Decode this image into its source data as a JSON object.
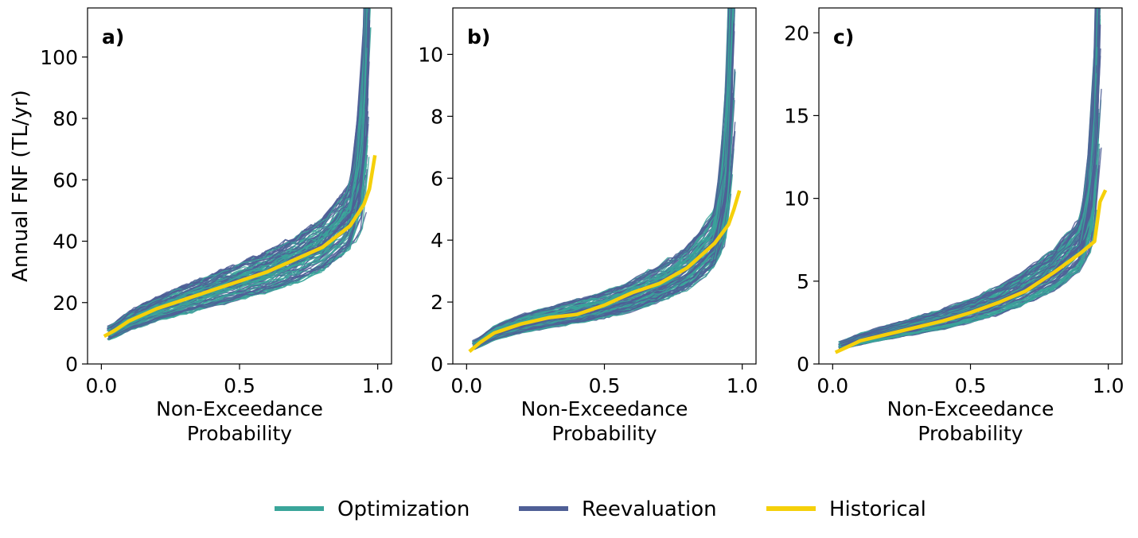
{
  "figure": {
    "ylabel": "Annual FNF (TL/yr)",
    "xlabel_line1": "Non-Exceedance",
    "xlabel_line2": "Probability",
    "legend": [
      {
        "label": "Optimization",
        "color": "#3aa59a"
      },
      {
        "label": "Reevaluation",
        "color": "#4f5f96"
      },
      {
        "label": "Historical",
        "color": "#f5d00a"
      }
    ]
  },
  "chart_data": [
    {
      "type": "line",
      "panel_label": "a)",
      "xlabel": "Non-Exceedance Probability",
      "ylabel": "Annual FNF (TL/yr)",
      "xlim": [
        -0.05,
        1.05
      ],
      "ylim": [
        0,
        116
      ],
      "xticks": [
        0.0,
        0.5,
        1.0
      ],
      "xtick_labels": [
        "0.0",
        "0.5",
        "1.0"
      ],
      "yticks": [
        0,
        20,
        40,
        60,
        80,
        100
      ],
      "ytick_labels": [
        "0",
        "20",
        "40",
        "60",
        "80",
        "100"
      ],
      "grid": false,
      "series": [
        {
          "name": "Historical",
          "x": [
            0.01,
            0.05,
            0.1,
            0.2,
            0.3,
            0.4,
            0.5,
            0.6,
            0.7,
            0.8,
            0.9,
            0.95,
            0.97,
            0.99
          ],
          "y": [
            9,
            11,
            14,
            18,
            21,
            24,
            27,
            30,
            34,
            38,
            45,
            52,
            57,
            68
          ]
        },
        {
          "name": "Reevaluation",
          "x": [
            0.03,
            0.1,
            0.2,
            0.3,
            0.4,
            0.5,
            0.6,
            0.7,
            0.8,
            0.9,
            0.94,
            0.96,
            0.97
          ],
          "y": [
            10,
            14,
            18,
            21,
            24,
            27,
            30,
            34,
            39,
            48,
            58,
            75,
            112
          ]
        }
      ]
    },
    {
      "type": "line",
      "panel_label": "b)",
      "xlabel": "Non-Exceedance Probability",
      "xlim": [
        -0.05,
        1.05
      ],
      "ylim": [
        0,
        11.5
      ],
      "xticks": [
        0.0,
        0.5,
        1.0
      ],
      "xtick_labels": [
        "0.0",
        "0.5",
        "1.0"
      ],
      "yticks": [
        0,
        2,
        4,
        6,
        8,
        10
      ],
      "ytick_labels": [
        "0",
        "2",
        "4",
        "6",
        "8",
        "10"
      ],
      "grid": false,
      "series": [
        {
          "name": "Historical",
          "x": [
            0.01,
            0.05,
            0.1,
            0.2,
            0.3,
            0.4,
            0.5,
            0.6,
            0.7,
            0.8,
            0.9,
            0.95,
            0.97,
            0.99
          ],
          "y": [
            0.4,
            0.7,
            1.0,
            1.3,
            1.5,
            1.6,
            1.9,
            2.3,
            2.6,
            3.1,
            3.9,
            4.5,
            5.0,
            5.6
          ]
        },
        {
          "name": "Reevaluation",
          "x": [
            0.03,
            0.1,
            0.2,
            0.3,
            0.4,
            0.5,
            0.6,
            0.7,
            0.8,
            0.9,
            0.94,
            0.96,
            0.97
          ],
          "y": [
            0.6,
            1.0,
            1.3,
            1.5,
            1.7,
            1.9,
            2.2,
            2.6,
            3.1,
            4.0,
            5.5,
            8.0,
            11.0
          ]
        }
      ]
    },
    {
      "type": "line",
      "panel_label": "c)",
      "xlabel": "Non-Exceedance Probability",
      "xlim": [
        -0.05,
        1.05
      ],
      "ylim": [
        0,
        21.5
      ],
      "xticks": [
        0.0,
        0.5,
        1.0
      ],
      "xtick_labels": [
        "0.0",
        "0.5",
        "1.0"
      ],
      "yticks": [
        0,
        5,
        10,
        15,
        20
      ],
      "ytick_labels": [
        "0",
        "5",
        "10",
        "15",
        "20"
      ],
      "grid": false,
      "series": [
        {
          "name": "Historical",
          "x": [
            0.01,
            0.05,
            0.1,
            0.2,
            0.3,
            0.4,
            0.5,
            0.6,
            0.7,
            0.8,
            0.9,
            0.95,
            0.97,
            0.99
          ],
          "y": [
            0.7,
            1.0,
            1.4,
            1.8,
            2.2,
            2.6,
            3.1,
            3.7,
            4.4,
            5.5,
            6.7,
            7.4,
            9.8,
            10.5
          ]
        },
        {
          "name": "Reevaluation",
          "x": [
            0.03,
            0.1,
            0.2,
            0.3,
            0.4,
            0.5,
            0.6,
            0.7,
            0.8,
            0.9,
            0.94,
            0.96,
            0.97
          ],
          "y": [
            1.1,
            1.5,
            1.9,
            2.3,
            2.7,
            3.2,
            3.8,
            4.6,
            5.6,
            7.2,
            9.5,
            14.0,
            20.5
          ]
        }
      ]
    }
  ]
}
